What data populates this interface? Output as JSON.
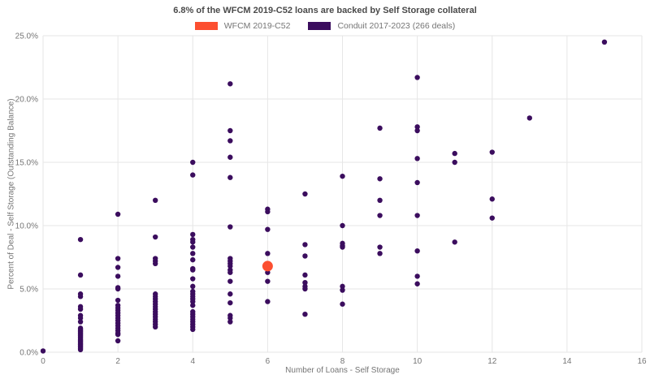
{
  "title": "6.8% of the WFCM 2019-C52 loans are backed by Self Storage collateral",
  "legend": {
    "items": [
      {
        "label": "WFCM 2019-C52",
        "color": "#fc4f30"
      },
      {
        "label": "Conduit 2017-2023 (266 deals)",
        "color": "#3b0d5e"
      }
    ]
  },
  "x_axis": {
    "label": "Number of Loans - Self Storage",
    "ticks": [
      0,
      2,
      4,
      6,
      8,
      10,
      12,
      14,
      16
    ]
  },
  "y_axis": {
    "label": "Percent of Deal - Self Storage (Outstanding Balance)",
    "ticks": [
      0,
      5,
      10,
      15,
      20,
      25
    ]
  },
  "colors": {
    "background": "#ffffff",
    "grid": "#e6e6e6",
    "tick_text": "#757575",
    "title_text": "#4a4a4a"
  },
  "chart_data": {
    "type": "scatter",
    "title": "6.8% of the WFCM 2019-C52 loans are backed by Self Storage collateral",
    "xlabel": "Number of Loans - Self Storage",
    "ylabel": "Percent of Deal - Self Storage (Outstanding Balance)",
    "xlim": [
      0,
      16
    ],
    "ylim": [
      0,
      25
    ],
    "x_ticks": [
      0,
      2,
      4,
      6,
      8,
      10,
      12,
      14,
      16
    ],
    "y_ticks": [
      0,
      5,
      10,
      15,
      20,
      25
    ],
    "grid": true,
    "legend_position": "top-center",
    "series": [
      {
        "name": "WFCM 2019-C52",
        "color": "#fc4f30",
        "marker_radius": 6.5,
        "points": [
          [
            6,
            6.8
          ]
        ]
      },
      {
        "name": "Conduit 2017-2023 (266 deals)",
        "color": "#3b0d5e",
        "marker_radius": 3.2,
        "points": [
          [
            0,
            0.1
          ],
          [
            1,
            8.9
          ],
          [
            1,
            6.1
          ],
          [
            1,
            4.6
          ],
          [
            1,
            4.4
          ],
          [
            1,
            3.6
          ],
          [
            1,
            3.4
          ],
          [
            1,
            2.9
          ],
          [
            1,
            2.7
          ],
          [
            1,
            2.4
          ],
          [
            1,
            1.9
          ],
          [
            1,
            1.8
          ],
          [
            1,
            1.7
          ],
          [
            1,
            1.6
          ],
          [
            1,
            1.5
          ],
          [
            1,
            1.4
          ],
          [
            1,
            1.3
          ],
          [
            1,
            1.2
          ],
          [
            1,
            1.1
          ],
          [
            1,
            1.0
          ],
          [
            1,
            0.9
          ],
          [
            1,
            0.8
          ],
          [
            1,
            0.7
          ],
          [
            1,
            0.6
          ],
          [
            1,
            0.5
          ],
          [
            1,
            0.4
          ],
          [
            1,
            0.3
          ],
          [
            1,
            0.2
          ],
          [
            2,
            10.9
          ],
          [
            2,
            7.4
          ],
          [
            2,
            6.7
          ],
          [
            2,
            6.0
          ],
          [
            2,
            5.1
          ],
          [
            2,
            5.0
          ],
          [
            2,
            4.1
          ],
          [
            2,
            3.7
          ],
          [
            2,
            3.5
          ],
          [
            2,
            3.3
          ],
          [
            2,
            3.1
          ],
          [
            2,
            2.9
          ],
          [
            2,
            2.7
          ],
          [
            2,
            2.5
          ],
          [
            2,
            2.3
          ],
          [
            2,
            2.1
          ],
          [
            2,
            1.9
          ],
          [
            2,
            1.7
          ],
          [
            2,
            1.5
          ],
          [
            2,
            1.4
          ],
          [
            2,
            0.9
          ],
          [
            3,
            12.0
          ],
          [
            3,
            9.1
          ],
          [
            3,
            7.4
          ],
          [
            3,
            7.2
          ],
          [
            3,
            7.0
          ],
          [
            3,
            4.6
          ],
          [
            3,
            4.4
          ],
          [
            3,
            4.2
          ],
          [
            3,
            4.0
          ],
          [
            3,
            3.8
          ],
          [
            3,
            3.6
          ],
          [
            3,
            3.4
          ],
          [
            3,
            3.2
          ],
          [
            3,
            3.0
          ],
          [
            3,
            2.8
          ],
          [
            3,
            2.6
          ],
          [
            3,
            2.4
          ],
          [
            3,
            2.2
          ],
          [
            3,
            2.0
          ],
          [
            4,
            15.0
          ],
          [
            4,
            14.0
          ],
          [
            4,
            9.3
          ],
          [
            4,
            8.9
          ],
          [
            4,
            8.7
          ],
          [
            4,
            8.3
          ],
          [
            4,
            7.8
          ],
          [
            4,
            7.3
          ],
          [
            4,
            6.6
          ],
          [
            4,
            6.5
          ],
          [
            4,
            5.8
          ],
          [
            4,
            5.2
          ],
          [
            4,
            4.8
          ],
          [
            4,
            4.6
          ],
          [
            4,
            4.4
          ],
          [
            4,
            4.2
          ],
          [
            4,
            4.0
          ],
          [
            4,
            3.7
          ],
          [
            4,
            3.2
          ],
          [
            4,
            3.0
          ],
          [
            4,
            2.8
          ],
          [
            4,
            2.6
          ],
          [
            4,
            2.4
          ],
          [
            4,
            2.2
          ],
          [
            4,
            2.0
          ],
          [
            4,
            1.8
          ],
          [
            5,
            21.2
          ],
          [
            5,
            17.5
          ],
          [
            5,
            16.7
          ],
          [
            5,
            15.4
          ],
          [
            5,
            13.8
          ],
          [
            5,
            9.9
          ],
          [
            5,
            7.4
          ],
          [
            5,
            7.2
          ],
          [
            5,
            7.0
          ],
          [
            5,
            6.8
          ],
          [
            5,
            6.5
          ],
          [
            5,
            6.3
          ],
          [
            5,
            5.6
          ],
          [
            5,
            4.6
          ],
          [
            5,
            3.9
          ],
          [
            5,
            2.9
          ],
          [
            5,
            2.7
          ],
          [
            5,
            2.4
          ],
          [
            6,
            11.3
          ],
          [
            6,
            11.1
          ],
          [
            6,
            9.7
          ],
          [
            6,
            7.8
          ],
          [
            6,
            6.9
          ],
          [
            6,
            6.3
          ],
          [
            6,
            5.6
          ],
          [
            6,
            4.0
          ],
          [
            7,
            12.5
          ],
          [
            7,
            8.5
          ],
          [
            7,
            7.6
          ],
          [
            7,
            6.1
          ],
          [
            7,
            5.5
          ],
          [
            7,
            5.2
          ],
          [
            7,
            5.0
          ],
          [
            7,
            3.0
          ],
          [
            8,
            13.9
          ],
          [
            8,
            10.0
          ],
          [
            8,
            8.6
          ],
          [
            8,
            8.4
          ],
          [
            8,
            8.3
          ],
          [
            8,
            5.2
          ],
          [
            8,
            4.9
          ],
          [
            8,
            3.8
          ],
          [
            9,
            17.7
          ],
          [
            9,
            13.7
          ],
          [
            9,
            12.0
          ],
          [
            9,
            10.8
          ],
          [
            9,
            8.3
          ],
          [
            9,
            7.8
          ],
          [
            10,
            21.7
          ],
          [
            10,
            17.8
          ],
          [
            10,
            17.5
          ],
          [
            10,
            15.3
          ],
          [
            10,
            13.4
          ],
          [
            10,
            10.8
          ],
          [
            10,
            8.0
          ],
          [
            10,
            6.0
          ],
          [
            10,
            5.4
          ],
          [
            11,
            15.7
          ],
          [
            11,
            15.0
          ],
          [
            11,
            8.7
          ],
          [
            12,
            15.8
          ],
          [
            12,
            12.1
          ],
          [
            12,
            10.6
          ],
          [
            13,
            18.5
          ],
          [
            15,
            24.5
          ]
        ]
      }
    ]
  }
}
